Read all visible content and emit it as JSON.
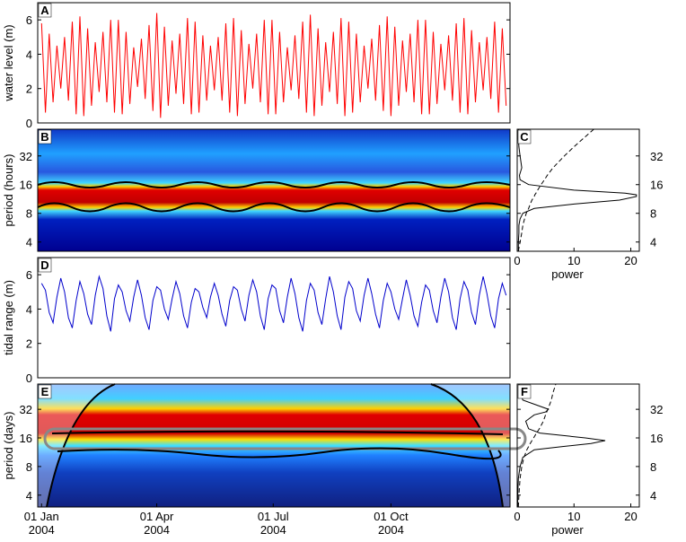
{
  "chart_data": [
    {
      "type": "line",
      "panel": "A",
      "ylabel": "water level (m)",
      "color": "#ff0000",
      "xlim": [
        -3,
        366
      ],
      "ylim": [
        0,
        7
      ],
      "yticks": [
        0,
        2,
        4,
        6
      ],
      "x": [
        0,
        3,
        6,
        9,
        12,
        15,
        18,
        21,
        24,
        27,
        30,
        33,
        36,
        39,
        42,
        45,
        48,
        51,
        54,
        57,
        60,
        63,
        66,
        69,
        72,
        75,
        78,
        81,
        84,
        87,
        90,
        93,
        96,
        99,
        102,
        105,
        108,
        111,
        114,
        117,
        120,
        123,
        126,
        129,
        132,
        135,
        138,
        141,
        144,
        147,
        150,
        153,
        156,
        159,
        162,
        165,
        168,
        171,
        174,
        177,
        180,
        183,
        186,
        189,
        192,
        195,
        198,
        201,
        204,
        207,
        210,
        213,
        216,
        219,
        222,
        225,
        228,
        231,
        234,
        237,
        240,
        243,
        246,
        249,
        252,
        255,
        258,
        261,
        264,
        267,
        270,
        273,
        276,
        279,
        282,
        285,
        288,
        291,
        294,
        297,
        300,
        303,
        306,
        309,
        312,
        315,
        318,
        321,
        324,
        327,
        330,
        333,
        336,
        339,
        342,
        345,
        348,
        351,
        354,
        357,
        360,
        363
      ],
      "values": [
        5.8,
        0.6,
        5.2,
        1.2,
        4.5,
        2.0,
        5.0,
        1.3,
        5.9,
        0.5,
        6.2,
        0.4,
        5.5,
        1.0,
        4.7,
        1.8,
        5.3,
        1.2,
        6.0,
        0.6,
        6.0,
        0.5,
        5.3,
        1.1,
        4.4,
        2.1,
        4.9,
        1.4,
        5.7,
        0.7,
        6.4,
        0.3,
        5.6,
        1.0,
        4.8,
        1.7,
        5.2,
        1.1,
        6.1,
        0.5,
        5.9,
        0.6,
        5.1,
        1.3,
        4.5,
        1.9,
        5.0,
        1.3,
        5.8,
        0.6,
        6.1,
        0.4,
        5.4,
        1.1,
        4.6,
        2.0,
        5.2,
        1.2,
        6.0,
        0.5,
        6.0,
        0.5,
        5.3,
        1.2,
        4.4,
        1.9,
        5.1,
        1.4,
        5.9,
        0.6,
        6.3,
        0.4,
        5.5,
        1.0,
        4.7,
        1.8,
        5.3,
        1.1,
        6.1,
        0.4,
        5.9,
        0.6,
        5.2,
        1.2,
        4.5,
        2.0,
        4.9,
        1.3,
        5.7,
        0.7,
        6.2,
        0.4,
        5.6,
        1.0,
        4.8,
        1.8,
        5.2,
        1.2,
        6.0,
        0.5,
        6.0,
        0.5,
        5.3,
        1.1,
        4.6,
        1.9,
        5.1,
        1.3,
        5.8,
        0.6,
        6.1,
        0.5,
        5.4,
        1.2,
        4.7,
        1.9,
        5.0,
        1.4,
        5.9,
        0.6,
        5.5,
        1.0
      ]
    },
    {
      "type": "wavelet",
      "panel": "B",
      "ylabel": "period (hours)",
      "log_y": true,
      "xlim": [
        -3,
        366
      ],
      "ylim": [
        3.2,
        61
      ],
      "yticks": [
        4,
        8,
        16,
        32
      ]
    },
    {
      "type": "line",
      "orientation": "horizontal",
      "panel": "C",
      "xlabel": "power",
      "log_y": true,
      "xlim": [
        0,
        21.5
      ],
      "xticks": [
        0,
        10,
        20
      ],
      "ylim": [
        3.2,
        61
      ],
      "yticks": [
        4,
        8,
        16,
        32
      ],
      "y": [
        3.2,
        4,
        5,
        6,
        7,
        8,
        9,
        10,
        11,
        12,
        12.5,
        13,
        14,
        16,
        18,
        20,
        24,
        32,
        40,
        48,
        61
      ],
      "series": [
        {
          "color": "#000000",
          "linestyle": "solid",
          "values": [
            0.2,
            0.2,
            0.3,
            0.3,
            0.5,
            1,
            3,
            10,
            18,
            21,
            21,
            19,
            10,
            2,
            0.5,
            0.4,
            0.8,
            0.5,
            0.3,
            0.2,
            0.2
          ]
        },
        {
          "color": "#000000",
          "linestyle": "dashed",
          "values": [
            0.2,
            0.5,
            0.8,
            1,
            1.3,
            1.6,
            2,
            2.3,
            2.6,
            3,
            3.1,
            3.3,
            3.6,
            4.2,
            4.8,
            5.3,
            6.3,
            8.3,
            10,
            11.5,
            13.5
          ]
        }
      ]
    },
    {
      "type": "line",
      "panel": "D",
      "ylabel": "tidal range (m)",
      "color": "#0000cc",
      "xlim": [
        -3,
        366
      ],
      "ylim": [
        0,
        7
      ],
      "yticks": [
        0,
        2,
        4,
        6
      ],
      "x": [
        0,
        3,
        6,
        9,
        12,
        15,
        18,
        21,
        24,
        27,
        30,
        33,
        36,
        39,
        42,
        45,
        48,
        51,
        54,
        57,
        60,
        63,
        66,
        69,
        72,
        75,
        78,
        81,
        84,
        87,
        90,
        93,
        96,
        99,
        102,
        105,
        108,
        111,
        114,
        117,
        120,
        123,
        126,
        129,
        132,
        135,
        138,
        141,
        144,
        147,
        150,
        153,
        156,
        159,
        162,
        165,
        168,
        171,
        174,
        177,
        180,
        183,
        186,
        189,
        192,
        195,
        198,
        201,
        204,
        207,
        210,
        213,
        216,
        219,
        222,
        225,
        228,
        231,
        234,
        237,
        240,
        243,
        246,
        249,
        252,
        255,
        258,
        261,
        264,
        267,
        270,
        273,
        276,
        279,
        282,
        285,
        288,
        291,
        294,
        297,
        300,
        303,
        306,
        309,
        312,
        315,
        318,
        321,
        324,
        327,
        330,
        333,
        336,
        339,
        342,
        345,
        348,
        351,
        354,
        357,
        360,
        363
      ],
      "values": [
        5.5,
        5.1,
        3.8,
        3.2,
        4.7,
        5.8,
        5.0,
        3.5,
        2.9,
        4.5,
        5.6,
        4.9,
        3.7,
        3.1,
        4.8,
        5.9,
        5.2,
        3.6,
        2.7,
        4.6,
        5.4,
        5.0,
        3.9,
        3.3,
        4.7,
        5.7,
        4.8,
        3.5,
        2.8,
        4.5,
        5.3,
        5.1,
        4.0,
        3.4,
        4.6,
        5.6,
        4.9,
        3.6,
        2.9,
        4.4,
        5.2,
        5.0,
        4.1,
        3.5,
        4.7,
        5.5,
        4.8,
        3.7,
        3.0,
        4.5,
        5.3,
        5.1,
        4.0,
        3.3,
        4.8,
        5.7,
        5.0,
        3.6,
        2.8,
        4.6,
        5.4,
        5.2,
        3.9,
        3.2,
        4.7,
        5.8,
        4.9,
        3.5,
        2.7,
        4.5,
        5.5,
        5.1,
        3.8,
        3.1,
        4.6,
        5.9,
        5.0,
        3.6,
        2.8,
        4.7,
        5.6,
        5.2,
        3.9,
        3.3,
        4.8,
        5.8,
        4.9,
        3.7,
        2.9,
        4.5,
        5.5,
        5.0,
        4.0,
        3.4,
        4.6,
        5.7,
        4.8,
        3.6,
        3.0,
        4.4,
        5.4,
        5.1,
        3.9,
        3.2,
        4.7,
        5.8,
        5.0,
        3.5,
        2.8,
        4.6,
        5.6,
        5.1,
        3.8,
        3.1,
        4.8,
        5.9,
        4.9,
        3.6,
        2.9,
        4.6,
        5.5,
        4.8
      ]
    },
    {
      "type": "wavelet",
      "panel": "E",
      "ylabel": "period (days)",
      "log_y": true,
      "xlim": [
        -3,
        366
      ],
      "ylim": [
        3,
        59
      ],
      "yticks": [
        4,
        8,
        16,
        32
      ],
      "xticks": [
        {
          "value": 0,
          "label": "01 Jan\n2004"
        },
        {
          "value": 90,
          "label": "01 Apr\n2004"
        },
        {
          "value": 181,
          "label": "01 Jul\n2004"
        },
        {
          "value": 273,
          "label": "01 Oct\n2004"
        }
      ]
    },
    {
      "type": "line",
      "orientation": "horizontal",
      "panel": "F",
      "xlabel": "power",
      "log_y": true,
      "xlim": [
        0,
        21.5
      ],
      "xticks": [
        0,
        10,
        20
      ],
      "ylim": [
        3,
        59
      ],
      "yticks": [
        4,
        8,
        16,
        32
      ],
      "y": [
        3,
        4,
        6,
        8,
        10,
        12,
        13,
        14,
        15,
        16,
        18,
        20,
        24,
        28,
        30,
        32,
        40,
        48,
        59
      ],
      "series": [
        {
          "color": "#000000",
          "linestyle": "solid",
          "values": [
            0.1,
            0.1,
            0.2,
            0.5,
            1,
            3,
            8,
            13,
            15.5,
            12,
            4,
            2,
            1.5,
            3,
            5,
            5.5,
            1,
            0.5,
            0.3
          ]
        },
        {
          "color": "#000000",
          "linestyle": "dashed",
          "values": [
            0.2,
            0.3,
            0.5,
            0.8,
            1.2,
            1.7,
            2,
            2.3,
            2.6,
            2.9,
            3.4,
            3.9,
            4.6,
            5,
            5.2,
            5.4,
            6,
            6.3,
            6.8
          ]
        }
      ]
    }
  ]
}
